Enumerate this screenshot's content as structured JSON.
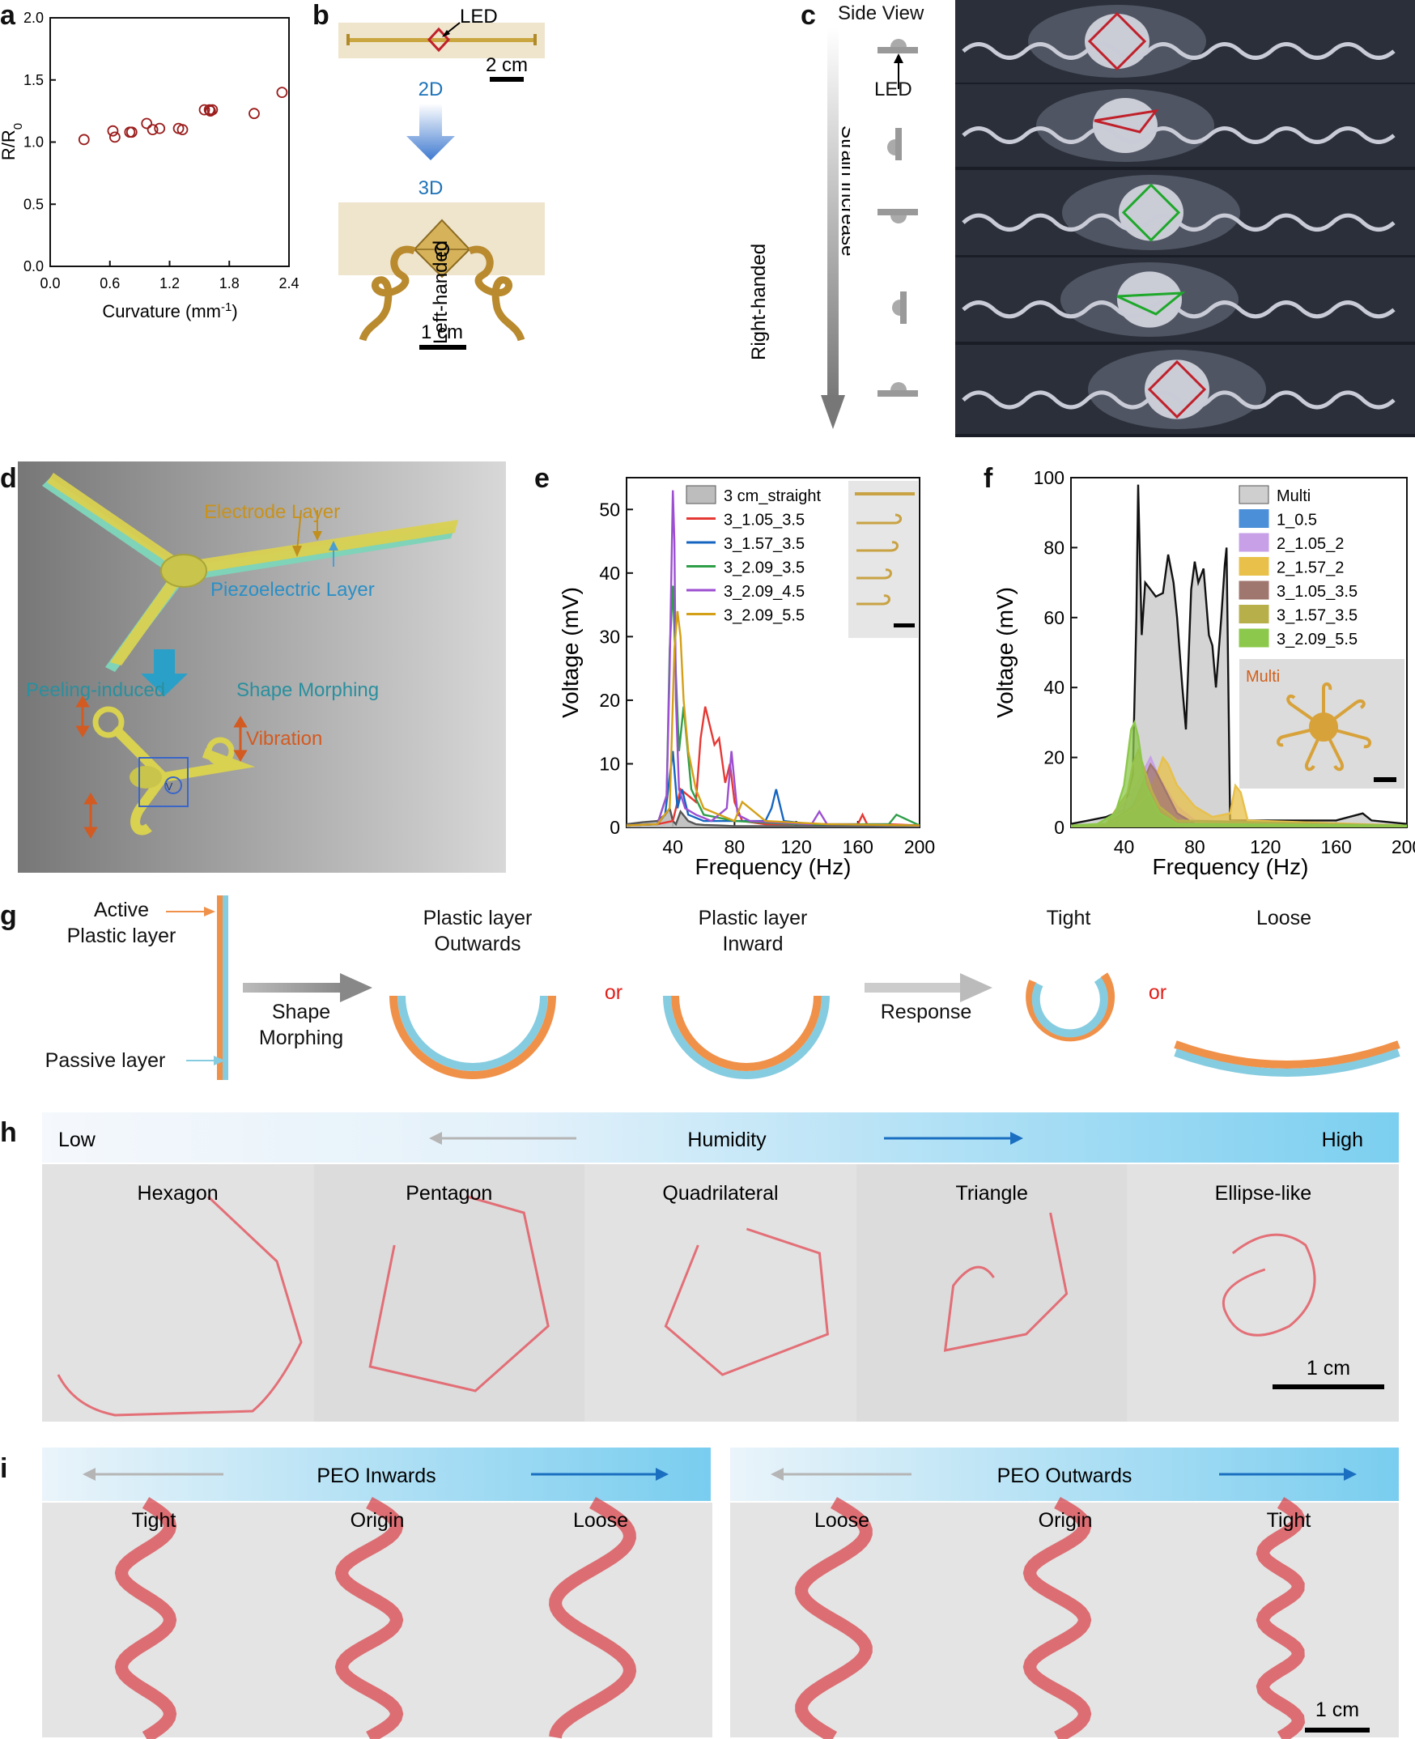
{
  "panels": {
    "a": {
      "label": "a",
      "chart_data": {
        "type": "scatter",
        "xlabel": "Curvature (mm",
        "xlabel_sup": "-1",
        "xlabel_end": ")",
        "ylabel": "R/R",
        "ylabel_sub": "0",
        "xlim": [
          0.0,
          2.4
        ],
        "ylim": [
          0.0,
          2.0
        ],
        "xticks": [
          "0.0",
          "0.6",
          "1.2",
          "1.8",
          "2.4"
        ],
        "yticks": [
          "0.0",
          "0.5",
          "1.0",
          "1.5",
          "2.0"
        ],
        "marker_color": "#9b1c1c",
        "points": [
          [
            0.34,
            1.02
          ],
          [
            0.63,
            1.09
          ],
          [
            0.65,
            1.04
          ],
          [
            0.8,
            1.08
          ],
          [
            0.82,
            1.08
          ],
          [
            0.97,
            1.15
          ],
          [
            1.03,
            1.1
          ],
          [
            1.1,
            1.11
          ],
          [
            1.29,
            1.11
          ],
          [
            1.33,
            1.1
          ],
          [
            1.55,
            1.26
          ],
          [
            1.6,
            1.26
          ],
          [
            1.61,
            1.25
          ],
          [
            1.63,
            1.26
          ],
          [
            2.05,
            1.23
          ],
          [
            2.33,
            1.4
          ]
        ]
      }
    },
    "b": {
      "label": "b",
      "led": "LED",
      "scale_top": "2 cm",
      "top_state": "2D",
      "bottom_state": "3D",
      "left_side": "Left-handed",
      "right_side": "Right-handed",
      "scale_bottom": "1 cm"
    },
    "c": {
      "label": "c",
      "side_view": "Side View",
      "led": "LED",
      "arrow_text": "Strain Increase"
    },
    "d": {
      "label": "d",
      "electrode": "Electrode Layer",
      "piezo": "Piezoelectric Layer",
      "morph_left": "Peeling-induced",
      "morph_right": "Shape Morphing",
      "vibration": "Vibration",
      "v": "V"
    },
    "e": {
      "label": "e",
      "chart_data": {
        "type": "line",
        "xlabel": "Frequency (Hz)",
        "ylabel": "Voltage (mV)",
        "xlim": [
          10,
          200
        ],
        "ylim": [
          0,
          55
        ],
        "xticks": [
          "40",
          "80",
          "120",
          "160",
          "200"
        ],
        "yticks": [
          "0",
          "10",
          "20",
          "30",
          "40",
          "50"
        ],
        "series": [
          {
            "name": "3 cm_straight",
            "color": "#555555",
            "fill": "#bdbdbd",
            "x": [
              10,
              20,
              30,
              35,
              38,
              40,
              42,
              45,
              50,
              55,
              60,
              70,
              80,
              100,
              140,
              200
            ],
            "y": [
              0.5,
              0.8,
              1.0,
              2.0,
              3.0,
              1.0,
              0.5,
              2.5,
              1.0,
              0.5,
              0.4,
              0.3,
              0.2,
              0.2,
              0.2,
              0.2
            ]
          },
          {
            "name": "3_1.05_3.5",
            "color": "#e53935",
            "x": [
              10,
              30,
              40,
              45,
              50,
              55,
              58,
              61,
              64,
              67,
              70,
              74,
              77,
              80,
              85,
              100,
              130,
              160,
              163,
              166,
              180,
              200
            ],
            "y": [
              0.3,
              0.5,
              1.0,
              6.0,
              5.0,
              4.0,
              14.0,
              19.0,
              16.0,
              13.0,
              14.0,
              7.0,
              10.0,
              4.0,
              1.0,
              0.5,
              0.5,
              0.5,
              2.0,
              0.5,
              0.5,
              0.3
            ]
          },
          {
            "name": "3_1.57_3.5",
            "color": "#1565c0",
            "x": [
              10,
              30,
              35,
              38,
              40,
              43,
              46,
              50,
              60,
              80,
              100,
              104,
              107,
              112,
              130,
              200
            ],
            "y": [
              0.3,
              0.5,
              2.0,
              8.0,
              12.0,
              3.0,
              6.0,
              2.0,
              1.0,
              1.0,
              1.0,
              3.0,
              6.0,
              1.0,
              0.5,
              0.3
            ]
          },
          {
            "name": "3_2.09_3.5",
            "color": "#2e9e48",
            "x": [
              10,
              30,
              36,
              38,
              40,
              42,
              44,
              47,
              52,
              60,
              80,
              120,
              150,
              180,
              185,
              200
            ],
            "y": [
              0.3,
              0.5,
              5.0,
              28.0,
              38.0,
              24.0,
              12.0,
              19.0,
              6.0,
              2.0,
              1.0,
              0.5,
              0.5,
              0.5,
              2.0,
              0.3
            ]
          },
          {
            "name": "3_2.09_4.5",
            "color": "#9c4fd0",
            "x": [
              10,
              30,
              36,
              38,
              40,
              41,
              42,
              44,
              48,
              55,
              65,
              75,
              78,
              82,
              90,
              130,
              135,
              140,
              200
            ],
            "y": [
              0.3,
              0.5,
              5.0,
              25.0,
              53.0,
              45.0,
              20.0,
              6.0,
              3.0,
              2.0,
              1.0,
              3.0,
              12.0,
              2.0,
              1.0,
              0.5,
              2.5,
              0.5,
              0.3
            ]
          },
          {
            "name": "3_2.09_5.5",
            "color": "#d4a017",
            "x": [
              10,
              30,
              38,
              41,
              43,
              45,
              47,
              50,
              55,
              60,
              70,
              80,
              85,
              100,
              140,
              200
            ],
            "y": [
              0.3,
              0.5,
              3.0,
              28.0,
              34.0,
              30.0,
              20.0,
              12.0,
              6.0,
              3.0,
              2.0,
              1.0,
              4.0,
              1.0,
              0.5,
              0.3
            ]
          }
        ]
      }
    },
    "f": {
      "label": "f",
      "inset_label": "Multi",
      "chart_data": {
        "type": "area",
        "xlabel": "Frequency (Hz)",
        "ylabel": "Voltage (mV)",
        "xlim": [
          10,
          200
        ],
        "ylim": [
          0,
          100
        ],
        "xticks": [
          "40",
          "80",
          "120",
          "160",
          "200"
        ],
        "yticks": [
          "0",
          "20",
          "40",
          "60",
          "80",
          "100"
        ],
        "series": [
          {
            "name": "Multi",
            "color": "#111111",
            "fill": "#cfcfcf",
            "x": [
              10,
              20,
              30,
              40,
              45,
              47,
              48,
              50,
              52,
              55,
              58,
              62,
              65,
              68,
              70,
              73,
              75,
              78,
              80,
              82,
              85,
              88,
              90,
              92,
              95,
              97,
              98,
              100,
              110,
              140,
              160,
              175,
              180,
              200
            ],
            "y": [
              1,
              2,
              3,
              5,
              15,
              60,
              98,
              55,
              70,
              68,
              66,
              67,
              78,
              70,
              60,
              40,
              28,
              68,
              76,
              70,
              74,
              55,
              52,
              40,
              60,
              75,
              80,
              2,
              2,
              2,
              2,
              4,
              2,
              1
            ]
          },
          {
            "name": "1_0.5",
            "color": "#4a8fd8",
            "x": [
              10,
              30,
              40,
              45,
              50,
              55,
              60,
              200
            ],
            "y": [
              0.5,
              1,
              3,
              8,
              4,
              2,
              1,
              0.5
            ]
          },
          {
            "name": "2_1.05_2",
            "color": "#c7a0e8",
            "x": [
              10,
              30,
              45,
              55,
              60,
              65,
              70,
              80,
              200
            ],
            "y": [
              0.5,
              1,
              10,
              20,
              14,
              10,
              6,
              2,
              0.5
            ]
          },
          {
            "name": "2_1.57_2",
            "color": "#e8c04a",
            "x": [
              10,
              30,
              45,
              55,
              62,
              65,
              70,
              80,
              90,
              100,
              103,
              106,
              110,
              200
            ],
            "y": [
              0.5,
              1,
              5,
              10,
              20,
              18,
              12,
              6,
              3,
              4,
              12,
              10,
              2,
              0.5
            ]
          },
          {
            "name": "3_1.05_3.5",
            "color": "#a0776f",
            "x": [
              10,
              30,
              45,
              50,
              55,
              58,
              62,
              66,
              70,
              80,
              200
            ],
            "y": [
              0.5,
              1,
              6,
              12,
              18,
              16,
              12,
              8,
              4,
              1,
              0.5
            ]
          },
          {
            "name": "3_1.57_3.5",
            "color": "#b7b04a",
            "x": [
              10,
              30,
              42,
              45,
              48,
              52,
              56,
              60,
              70,
              200
            ],
            "y": [
              0.5,
              1,
              10,
              18,
              22,
              16,
              10,
              6,
              2,
              0.5
            ]
          },
          {
            "name": "3_2.09_5.5",
            "color": "#8cc84b",
            "x": [
              10,
              25,
              35,
              40,
              44,
              46,
              48,
              52,
              56,
              60,
              70,
              200
            ],
            "y": [
              0.5,
              1,
              4,
              12,
              28,
              30,
              26,
              12,
              8,
              4,
              1,
              0.5
            ]
          }
        ]
      }
    },
    "g": {
      "label": "g",
      "active": "Active\nPlastic layer",
      "passive": "Passive layer",
      "arrow1": "Shape\nMorphing",
      "outwards": "Plastic layer\nOutwards",
      "or1": "or",
      "inward": "Plastic layer\nInward",
      "arrow2": "Response",
      "tight": "Tight",
      "or2": "or",
      "loose": "Loose",
      "orange": "#f0914a",
      "blue": "#86cce0"
    },
    "h": {
      "label": "h",
      "low": "Low",
      "center": "Humidity",
      "high": "High",
      "shapes": [
        "Hexagon",
        "Pentagon",
        "Quadrilateral",
        "Triangle",
        "Ellipse-like"
      ],
      "scale": "1 cm"
    },
    "i": {
      "label": "i",
      "left_title": "PEO Inwards",
      "right_title": "PEO Outwards",
      "left_states": [
        "Tight",
        "Origin",
        "Loose"
      ],
      "right_states": [
        "Loose",
        "Origin",
        "Tight"
      ],
      "scale": "1 cm"
    }
  }
}
